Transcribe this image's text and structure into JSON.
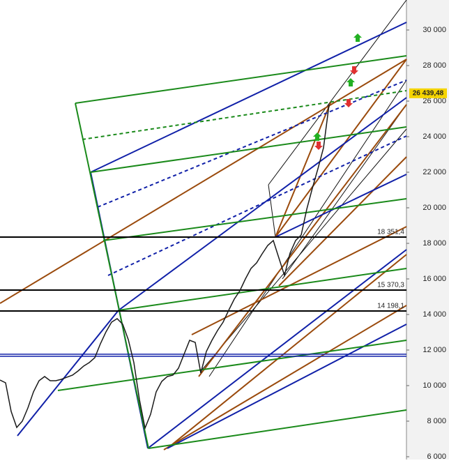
{
  "chart_data": {
    "type": "line",
    "values": [
      10314,
      10157,
      8549,
      7647,
      8000,
      8745,
      9647,
      10274,
      10510,
      10274,
      10274,
      10353,
      10471,
      10588,
      10824,
      11098,
      11294,
      11569,
      12353,
      13020,
      13569,
      13765,
      13451,
      12588,
      11294,
      9216,
      7608,
      8392,
      9647,
      10235,
      10510,
      10588,
      10980,
      11765,
      12549,
      12431,
      10706,
      11922,
      12549,
      13098,
      13569,
      14235,
      14863,
      15333,
      16000,
      16588,
      16902,
      17412,
      17882,
      18157,
      17176,
      16196,
      17451,
      18157,
      18471,
      19922,
      21098,
      22196,
      23373,
      25804
    ],
    "color": "#1a1a1a",
    "ylim": [
      5843,
      31686
    ],
    "yticks": [
      {
        "value": 6000,
        "label": "6 000"
      },
      {
        "value": 8000,
        "label": "8 000"
      },
      {
        "value": 10000,
        "label": "10 000"
      },
      {
        "value": 12000,
        "label": "12 000"
      },
      {
        "value": 14000,
        "label": "14 000"
      },
      {
        "value": 16000,
        "label": "16 000"
      },
      {
        "value": 18000,
        "label": "18 000"
      },
      {
        "value": 20000,
        "label": "20 000"
      },
      {
        "value": 22000,
        "label": "22 000"
      },
      {
        "value": 24000,
        "label": "24 000"
      },
      {
        "value": 26000,
        "label": "26 000"
      },
      {
        "value": 28000,
        "label": "28 000"
      },
      {
        "value": 30000,
        "label": "30 000"
      }
    ],
    "last_price": {
      "value": 26439.48,
      "label": "26 439,48"
    },
    "levels": [
      {
        "value": 18351.4,
        "label": "18 351,4"
      },
      {
        "value": 15370.3,
        "label": "15 370,3"
      },
      {
        "value": 14198.1,
        "label": "14 198,1"
      }
    ],
    "blue_levels": [
      11765,
      11647
    ]
  }
}
